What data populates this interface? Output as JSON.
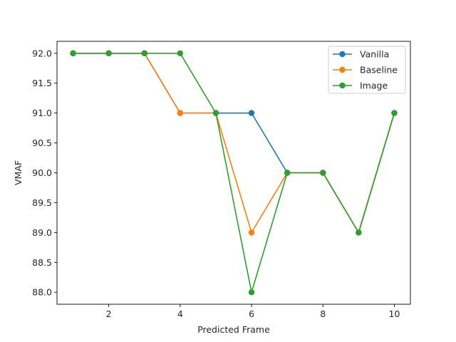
{
  "chart_data": {
    "type": "line",
    "xlabel": "Predicted Frame",
    "ylabel": "VMAF",
    "x": [
      1,
      2,
      3,
      4,
      5,
      6,
      7,
      8,
      9,
      10
    ],
    "xlim": [
      0.55,
      10.45
    ],
    "ylim": [
      87.8,
      92.2
    ],
    "x_ticks": [
      2,
      4,
      6,
      8,
      10
    ],
    "y_ticks": [
      88.0,
      88.5,
      89.0,
      89.5,
      90.0,
      90.5,
      91.0,
      91.5,
      92.0
    ],
    "grid": false,
    "legend_position": "top-right",
    "marker": "circle",
    "series": [
      {
        "name": "Vanilla",
        "color": "#1f77b4",
        "values": [
          92,
          92,
          92,
          91,
          91,
          91,
          90,
          90,
          89,
          91
        ]
      },
      {
        "name": "Baseline",
        "color": "#ff7f0e",
        "values": [
          92,
          92,
          92,
          91,
          91,
          89,
          90,
          90,
          89,
          91
        ]
      },
      {
        "name": "Image",
        "color": "#2ca02c",
        "values": [
          92,
          92,
          92,
          92,
          91,
          88,
          90,
          90,
          89,
          91
        ]
      }
    ]
  }
}
